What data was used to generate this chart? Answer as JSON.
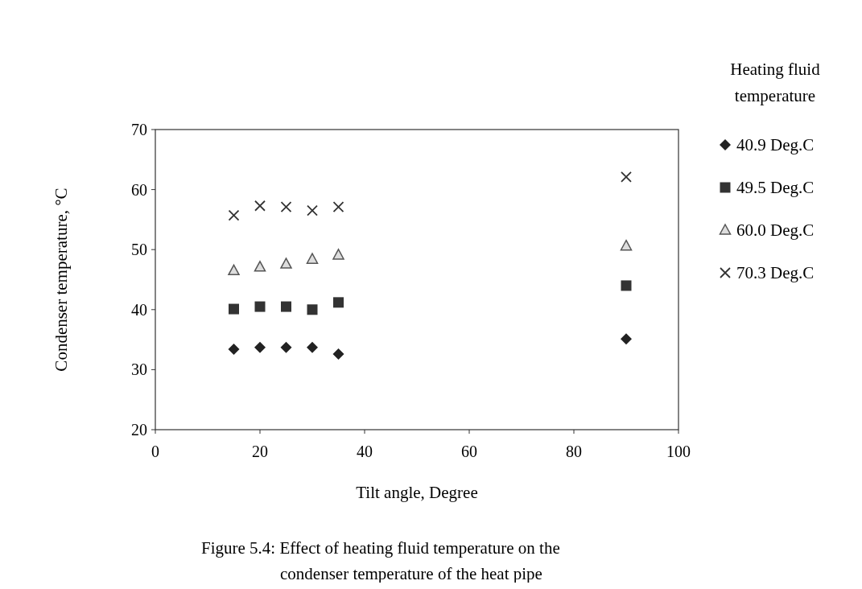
{
  "chart_data": {
    "type": "scatter",
    "xlabel": "Tilt angle, Degree",
    "ylabel": "Condenser temperature, °C",
    "legend_title": "Heating fluid temperature",
    "legend": "right",
    "grid": false,
    "x": [
      15,
      20,
      25,
      30,
      35,
      90
    ],
    "xlim": [
      0,
      100
    ],
    "xticks": [
      0,
      20,
      40,
      60,
      80,
      100
    ],
    "ylim": [
      20,
      70
    ],
    "yticks": [
      20,
      30,
      40,
      50,
      60,
      70
    ],
    "series": [
      {
        "name": "40.9 Deg.C",
        "color": "#222222",
        "marker": "diamond",
        "values": [
          33.4,
          33.7,
          33.7,
          33.7,
          32.6,
          35.1
        ]
      },
      {
        "name": "49.5 Deg.C",
        "color": "#333333",
        "marker": "square",
        "values": [
          40.1,
          40.5,
          40.5,
          40.0,
          41.2,
          44.0
        ]
      },
      {
        "name": "60.0 Deg.C",
        "color": "#555555",
        "marker": "triangle",
        "values": [
          46.5,
          47.1,
          47.6,
          48.4,
          49.1,
          50.6
        ]
      },
      {
        "name": "70.3 Deg.C",
        "color": "#333333",
        "marker": "cross",
        "values": [
          55.7,
          57.3,
          57.1,
          56.5,
          57.1,
          62.1
        ]
      }
    ],
    "annotations": [
      "Figure 5.4: Effect of heating fluid temperature on the condenser temperature of the heat pipe"
    ]
  }
}
